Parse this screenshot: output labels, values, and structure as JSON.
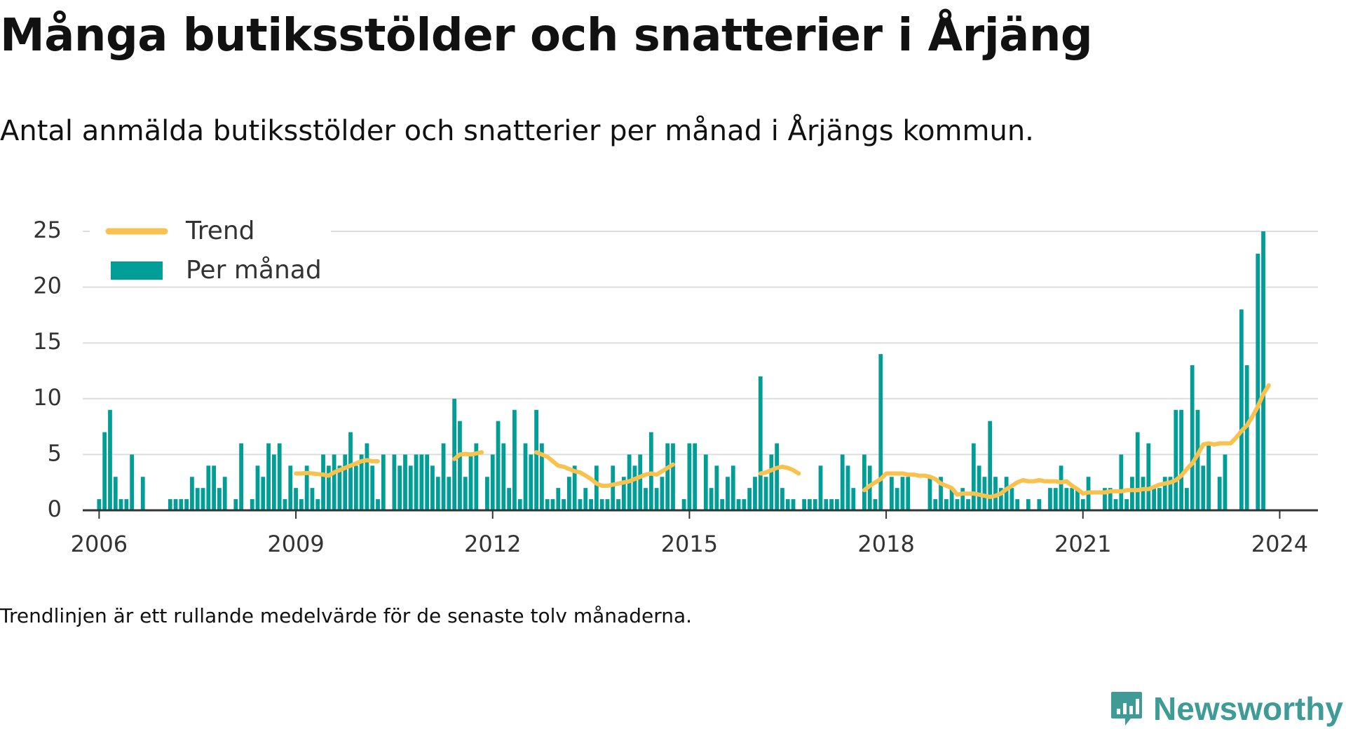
{
  "header": {
    "title": "Många butiksstölder och snatterier i Årjäng",
    "subtitle": "Antal anmälda butiksstölder och snatterier per månad i Årjängs kommun."
  },
  "footer": {
    "note": "Trendlinjen är ett rullande medelvärde för de senaste tolv månaderna.",
    "brand": "Newsworthy"
  },
  "colors": {
    "bars": "#009e97",
    "trend": "#f9c24e",
    "grid": "#dddddd",
    "axis": "#333333",
    "brand": "#3e9b95"
  },
  "chart_data": {
    "type": "bar",
    "x_unit": "month",
    "x_range": [
      "2005-10",
      "2024-08"
    ],
    "ylim": [
      0,
      25
    ],
    "y_ticks": [
      0,
      5,
      10,
      15,
      20,
      25
    ],
    "x_ticks": [
      "2006",
      "2009",
      "2012",
      "2015",
      "2018",
      "2021",
      "2024"
    ],
    "grid": "horizontal",
    "legend": {
      "placement": "top-left",
      "entries": [
        "Trend",
        "Per månad"
      ]
    },
    "series": [
      {
        "name": "Per månad",
        "type": "bar",
        "start": "2006-01",
        "values": [
          1,
          7,
          9,
          3,
          1,
          1,
          5,
          0,
          3,
          0,
          0,
          0,
          0,
          1,
          1,
          1,
          1,
          3,
          2,
          2,
          4,
          4,
          2,
          3,
          0,
          1,
          6,
          0,
          1,
          4,
          3,
          6,
          5,
          6,
          1,
          4,
          2,
          1,
          4,
          2,
          1,
          5,
          4,
          5,
          4,
          5,
          7,
          4,
          5,
          6,
          4,
          1,
          5,
          0,
          5,
          4,
          5,
          4,
          5,
          5,
          5,
          4,
          3,
          6,
          3,
          10,
          8,
          3,
          5,
          6,
          0,
          3,
          5,
          8,
          6,
          2,
          9,
          1,
          6,
          5,
          9,
          6,
          1,
          1,
          2,
          1,
          3,
          4,
          1,
          2,
          1,
          4,
          1,
          1,
          4,
          1,
          3,
          5,
          4,
          5,
          2,
          7,
          2,
          3,
          6,
          6,
          0,
          1,
          6,
          6,
          0,
          5,
          2,
          4,
          1,
          3,
          4,
          1,
          1,
          2,
          3,
          12,
          3,
          5,
          6,
          2,
          1,
          1,
          0,
          1,
          1,
          1,
          4,
          1,
          1,
          1,
          5,
          4,
          2,
          0,
          5,
          4,
          1,
          14,
          0,
          3,
          2,
          3,
          3,
          0,
          0,
          0,
          3,
          1,
          3,
          1,
          2,
          1,
          2,
          1,
          6,
          4,
          3,
          8,
          3,
          2,
          3,
          2,
          1,
          0,
          1,
          0,
          1,
          0,
          2,
          2,
          4,
          2,
          2,
          2,
          1,
          3,
          0,
          0,
          2,
          2,
          1,
          5,
          1,
          3,
          7,
          3,
          6,
          2,
          2,
          3,
          3,
          9,
          9,
          2,
          13,
          9,
          4,
          6,
          0,
          3,
          5,
          0,
          0,
          18,
          13,
          0,
          23,
          25
        ]
      },
      {
        "name": "Trend",
        "type": "line",
        "segments": [
          {
            "start": "2009-01",
            "values": [
              3.3,
              3.3,
              3.35,
              3.3,
              3.25,
              3.2,
              3.1,
              3.4,
              3.6,
              3.8,
              4.0,
              4.2,
              4.4,
              4.5,
              4.4,
              4.4
            ]
          },
          {
            "start": "2011-06",
            "values": [
              4.6,
              5.0,
              5.05,
              5.0,
              5.1,
              5.2
            ]
          },
          {
            "start": "2012-09",
            "values": [
              5.2,
              5.0,
              4.8,
              4.4,
              4.0,
              3.9,
              3.7,
              3.5,
              3.4,
              3.1,
              2.8,
              2.4,
              2.2,
              2.2,
              2.3,
              2.4,
              2.5,
              2.6,
              2.8,
              3.0,
              3.2,
              3.3,
              3.2,
              3.5,
              3.8,
              4.1
            ]
          },
          {
            "start": "2016-02",
            "values": [
              3.3,
              3.4,
              3.6,
              3.8,
              3.9,
              3.8,
              3.6,
              3.3
            ]
          },
          {
            "start": "2017-09",
            "values": [
              1.8,
              2.2,
              2.5,
              2.8,
              3.3,
              3.3,
              3.3,
              3.3,
              3.2,
              3.2,
              3.1,
              3.1,
              3.0,
              2.8,
              2.4,
              2.2,
              2.0,
              1.4,
              1.5,
              1.5,
              1.5,
              1.4,
              1.3,
              1.2,
              1.3,
              1.5,
              1.9,
              2.2,
              2.5,
              2.7,
              2.6,
              2.6,
              2.7,
              2.6,
              2.6,
              2.6,
              2.5,
              2.6,
              2.2,
              1.9,
              1.5,
              1.6,
              1.6,
              1.6,
              1.6,
              1.7,
              1.7,
              1.7,
              1.8,
              1.8,
              1.8,
              1.9,
              1.9,
              2.1,
              2.3,
              2.4,
              2.5,
              2.7,
              3.1,
              3.7,
              4.2,
              5.0,
              5.9,
              6.0,
              5.9,
              6.0,
              6.0,
              6.0,
              6.5,
              7.1,
              7.6,
              8.4,
              9.3,
              10.4,
              11.2
            ]
          }
        ]
      }
    ]
  }
}
